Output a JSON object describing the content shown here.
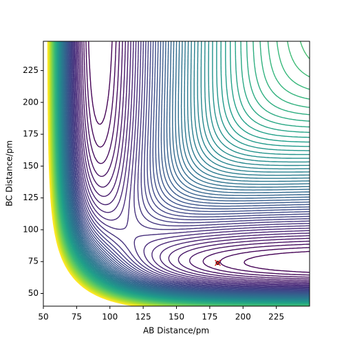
{
  "chart_data": {
    "type": "contour",
    "xlabel": "AB Distance/pm",
    "ylabel": "BC Distance/pm",
    "xlim": [
      50,
      250
    ],
    "ylim": [
      40,
      248
    ],
    "xticks": [
      50,
      75,
      100,
      125,
      150,
      175,
      200,
      225
    ],
    "yticks": [
      50,
      75,
      100,
      125,
      150,
      175,
      200,
      225
    ],
    "points": {
      "x": [
        181
      ],
      "y": [
        74
      ],
      "color": "#d62728"
    }
  }
}
